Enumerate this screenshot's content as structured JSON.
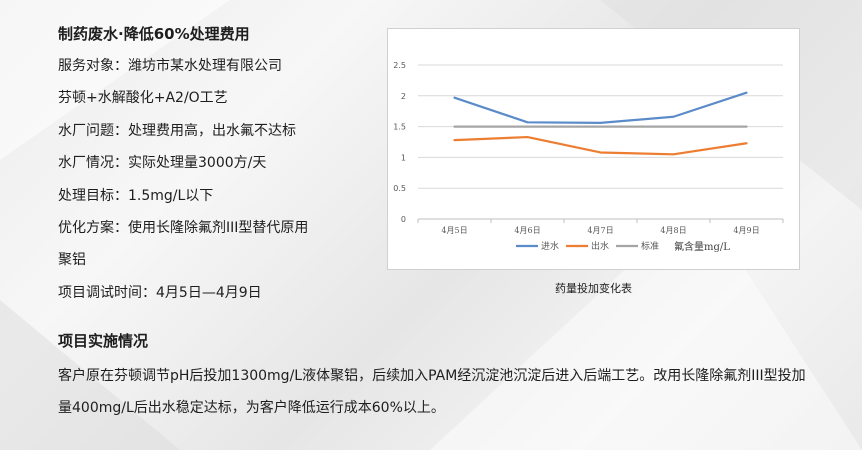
{
  "case": {
    "title": "制药废水·降低60%处理费用",
    "lines": [
      "服务对象：潍坊市某水处理有限公司",
      "芬顿+水解酸化+A2/O工艺",
      "水厂问题：处理费用高，出水氟不达标",
      "水厂情况：实际处理量3000方/天",
      "处理目标：1.5mg/L以下",
      "优化方案：使用长隆除氟剂III型替代原用",
      "聚铝",
      "项目调试时间：4月5日—4月9日"
    ]
  },
  "chart_caption": "药量投加变化表",
  "implementation": {
    "title": "项目实施情况",
    "body": "客户原在芬顿调节pH后投加1300mg/L液体聚铝，后续加入PAM经沉淀池沉淀后进入后端工艺。改用长隆除氟剂III型投加量400mg/L后出水稳定达标，为客户降低运行成本60%以上。"
  },
  "chart_data": {
    "type": "line",
    "categories": [
      "4月5日",
      "4月6日",
      "4月7日",
      "4月8日",
      "4月9日"
    ],
    "series": [
      {
        "name": "进水",
        "values": [
          1.97,
          1.57,
          1.56,
          1.66,
          2.05
        ],
        "color": "#5b8cc9"
      },
      {
        "name": "出水",
        "values": [
          1.28,
          1.33,
          1.08,
          1.05,
          1.23
        ],
        "color": "#ed7d31"
      },
      {
        "name": "标准",
        "values": [
          1.5,
          1.5,
          1.5,
          1.5,
          1.5
        ],
        "color": "#a5a5a5"
      }
    ],
    "ylim": [
      0,
      2.5
    ],
    "yticks": [
      "0",
      "0.5",
      "1",
      "1.5",
      "2",
      "2.5"
    ],
    "legend_note": "氟含量mg/L",
    "grid": true,
    "legend_position": "bottom"
  }
}
